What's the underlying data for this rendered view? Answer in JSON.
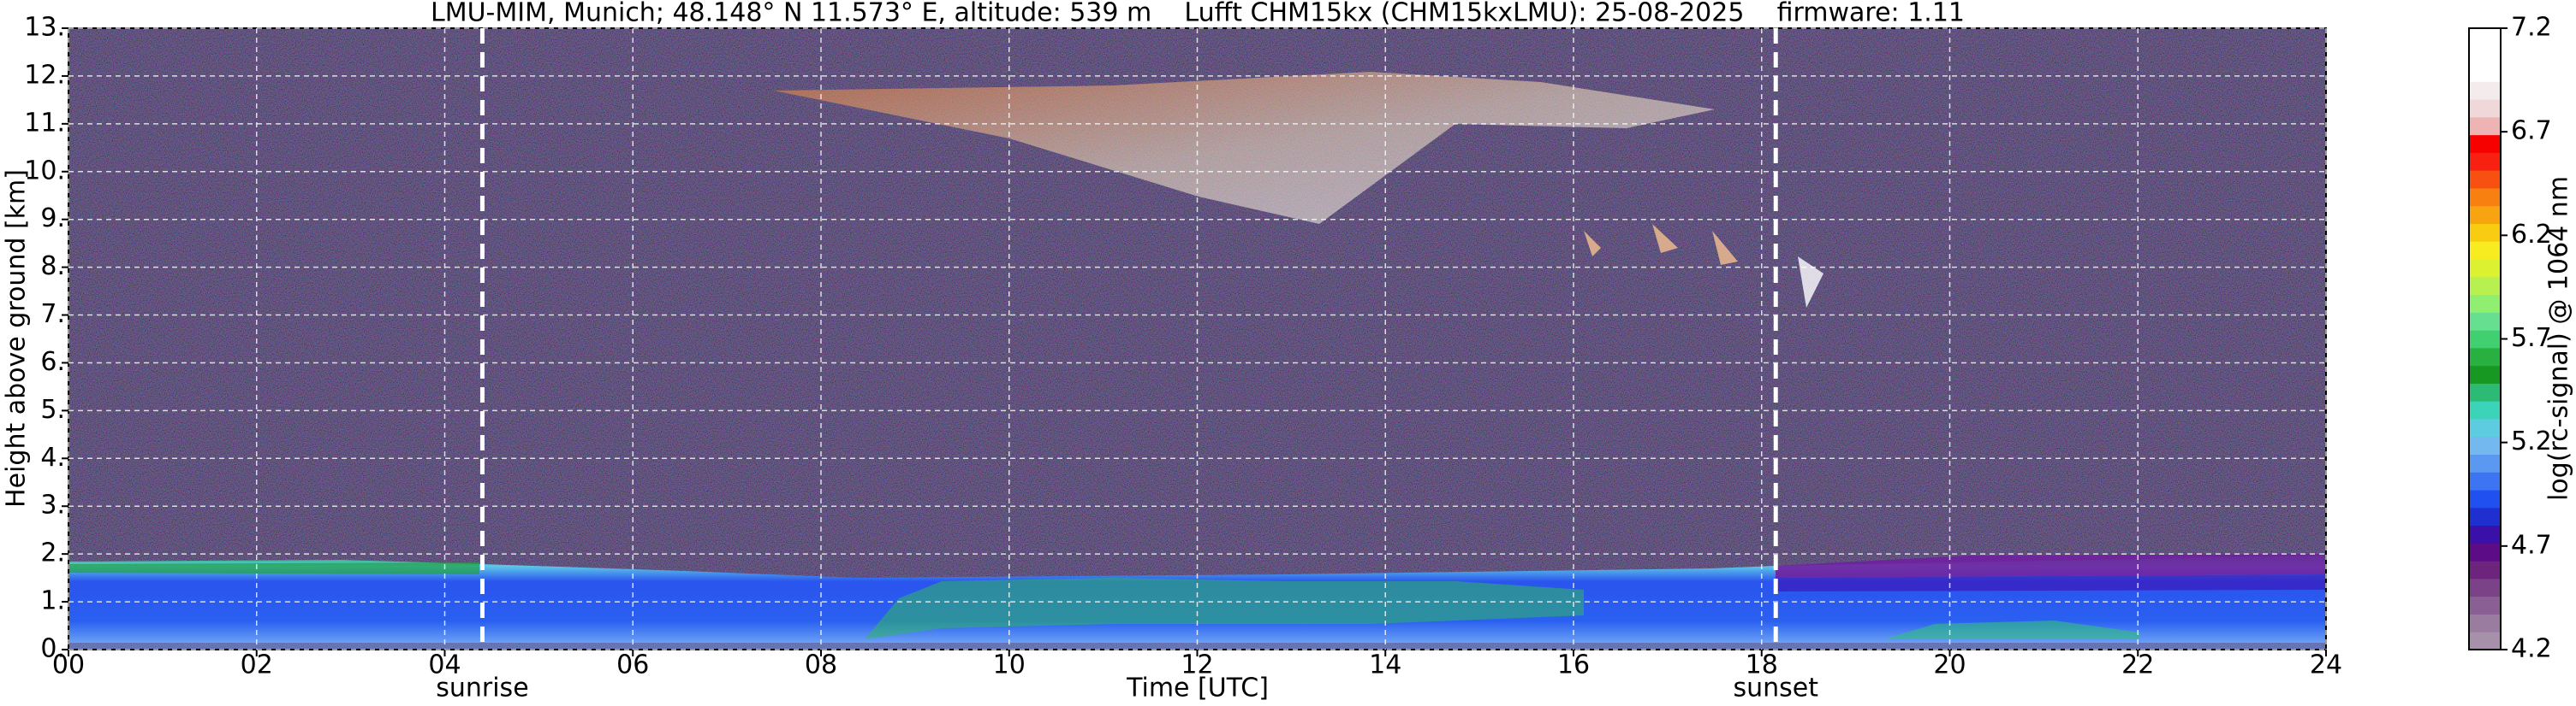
{
  "chart_data": {
    "type": "heatmap",
    "title": "LMU-MIM, Munich; 48.148° N 11.573° E, altitude: 539 m    Lufft CHM15kx (CHM15kxLMU): 25-08-2025    firmware: 1.11",
    "x_label": "Time [UTC]",
    "y_label": "Height above ground [km]",
    "xlim": [
      0,
      24
    ],
    "xticks": [
      {
        "value": 0,
        "label": "00"
      },
      {
        "value": 2,
        "label": "02"
      },
      {
        "value": 4,
        "label": "04"
      },
      {
        "value": 6,
        "label": "06"
      },
      {
        "value": 8,
        "label": "08"
      },
      10,
      12,
      14,
      16,
      18,
      20,
      22,
      24
    ],
    "ylim": [
      0,
      13
    ],
    "yticks": [
      {
        "value": 0,
        "label": "0."
      },
      {
        "value": 1,
        "label": "1."
      },
      {
        "value": 2,
        "label": "2."
      },
      {
        "value": 3,
        "label": "3."
      },
      {
        "value": 4,
        "label": "4."
      },
      {
        "value": 5,
        "label": "5."
      },
      {
        "value": 6,
        "label": "6."
      },
      {
        "value": 7,
        "label": "7."
      },
      {
        "value": 8,
        "label": "8."
      },
      {
        "value": 9,
        "label": "9."
      },
      {
        "value": 10,
        "label": "10."
      },
      {
        "value": 11,
        "label": "11."
      },
      {
        "value": 12,
        "label": "12."
      },
      {
        "value": 13,
        "label": "13."
      }
    ],
    "grid": true,
    "annotations": [
      {
        "label": "sunrise",
        "x": 4.4
      },
      {
        "label": "sunset",
        "x": 18.15
      }
    ],
    "colorbar": {
      "label": "log(rc-signal) @ 1064 nm",
      "lim": [
        4.2,
        7.2
      ],
      "ticks": [
        4.2,
        4.7,
        5.2,
        5.7,
        6.2,
        6.7,
        7.2
      ],
      "colors": [
        "#a690aa",
        "#9a7ca0",
        "#8a6094",
        "#7c4288",
        "#6c247c",
        "#5c0c86",
        "#3a10a8",
        "#2030d0",
        "#2050f0",
        "#3c74f2",
        "#5a98f2",
        "#74b8f0",
        "#5ecce0",
        "#3cd4b8",
        "#2cba74",
        "#169822",
        "#28b040",
        "#40d070",
        "#66e090",
        "#90ee70",
        "#b8f050",
        "#dcf230",
        "#f6ec20",
        "#f8cc10",
        "#f8a410",
        "#f88010",
        "#f85010",
        "#f82010",
        "#f60000",
        "#eeb4b4",
        "#f0d8d8",
        "#f4ecec",
        "#ffffff",
        "#ffffff",
        "#ffffff"
      ]
    }
  }
}
